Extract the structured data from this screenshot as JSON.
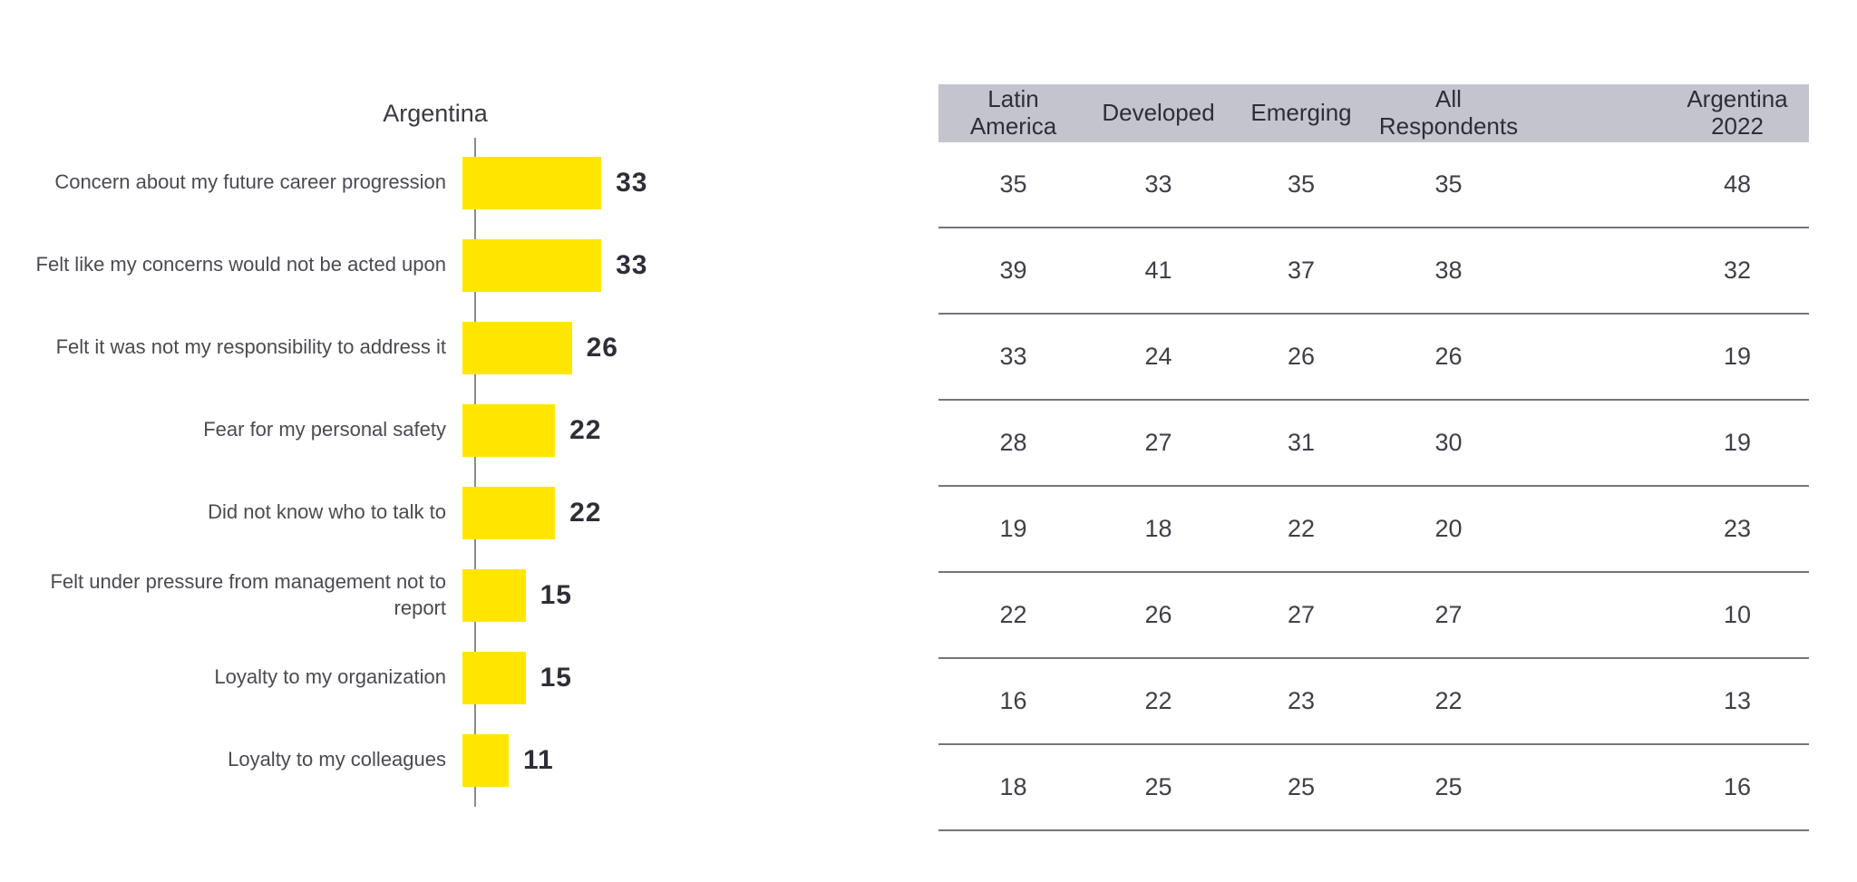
{
  "chart_data": [
    {
      "type": "bar",
      "orientation": "horizontal",
      "title": "Argentina",
      "categories": [
        "Concern about my future career progression",
        "Felt like my concerns would not be acted upon",
        "Felt it was not my responsibility to address it",
        "Fear for my personal safety",
        "Did not know who to talk to",
        "Felt under pressure from management not to report",
        "Loyalty to my organization",
        "Loyalty to my colleagues"
      ],
      "values": [
        33,
        33,
        26,
        22,
        22,
        15,
        15,
        11
      ],
      "xlim": [
        0,
        35
      ],
      "xlabel": "",
      "ylabel": "",
      "grid": false,
      "legend": "none",
      "value_labels_shown": true,
      "bar_color": "#FFE600",
      "axis_color": "#8A8A94"
    },
    {
      "type": "table",
      "columns": [
        "Latin\nAmerica",
        "Developed",
        "Emerging",
        "All\nRespondents",
        "Argentina\n2022"
      ],
      "rows": [
        [
          35,
          33,
          35,
          35,
          48
        ],
        [
          39,
          41,
          37,
          38,
          32
        ],
        [
          33,
          24,
          26,
          26,
          19
        ],
        [
          28,
          27,
          31,
          30,
          19
        ],
        [
          19,
          18,
          22,
          20,
          23
        ],
        [
          22,
          26,
          27,
          27,
          10
        ],
        [
          16,
          22,
          23,
          22,
          13
        ],
        [
          18,
          25,
          25,
          25,
          16
        ]
      ],
      "header_bg": "#C4C4CD",
      "divider_color": "#75757F"
    }
  ],
  "colors": {
    "bar": "#FFE600",
    "text_dark": "#2E2E38",
    "text_label": "#4A4A52",
    "header_bg": "#C4C4CD",
    "divider": "#75757F"
  }
}
